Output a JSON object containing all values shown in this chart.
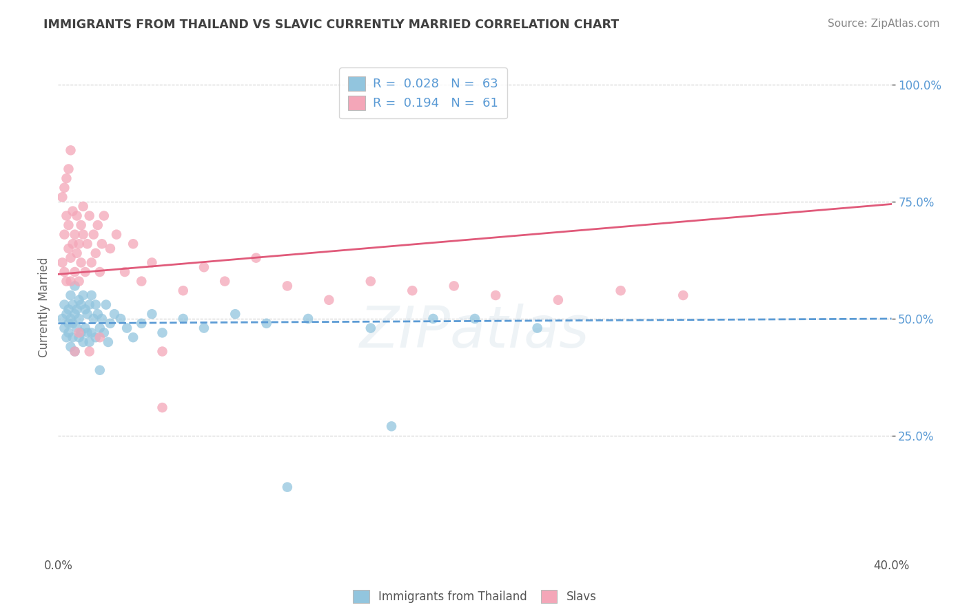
{
  "title": "IMMIGRANTS FROM THAILAND VS SLAVIC CURRENTLY MARRIED CORRELATION CHART",
  "source": "Source: ZipAtlas.com",
  "ylabel": "Currently Married",
  "legend_label1": "Immigrants from Thailand",
  "legend_label2": "Slavs",
  "R1": 0.028,
  "N1": 63,
  "R2": 0.194,
  "N2": 61,
  "color_blue": "#92c5de",
  "color_pink": "#f4a6b8",
  "color_blue_line": "#5b9bd5",
  "color_pink_line": "#e05a7a",
  "color_title": "#404040",
  "color_source": "#888888",
  "color_ytick": "#5b9bd5",
  "watermark": "ZIPatlas",
  "xlim": [
    0.0,
    0.4
  ],
  "ylim": [
    0.0,
    1.05
  ],
  "blue_line_y0": 0.49,
  "blue_line_y1": 0.5,
  "pink_line_y0": 0.595,
  "pink_line_y1": 0.745,
  "blue_scatter_x": [
    0.002,
    0.003,
    0.003,
    0.004,
    0.004,
    0.005,
    0.005,
    0.005,
    0.006,
    0.006,
    0.006,
    0.007,
    0.007,
    0.007,
    0.008,
    0.008,
    0.008,
    0.009,
    0.009,
    0.01,
    0.01,
    0.01,
    0.011,
    0.011,
    0.012,
    0.012,
    0.013,
    0.013,
    0.014,
    0.014,
    0.015,
    0.015,
    0.016,
    0.016,
    0.017,
    0.018,
    0.018,
    0.019,
    0.02,
    0.021,
    0.022,
    0.023,
    0.024,
    0.025,
    0.027,
    0.03,
    0.033,
    0.036,
    0.04,
    0.045,
    0.05,
    0.06,
    0.07,
    0.085,
    0.1,
    0.12,
    0.15,
    0.18,
    0.2,
    0.23,
    0.11,
    0.16,
    0.02
  ],
  "blue_scatter_y": [
    0.5,
    0.48,
    0.53,
    0.46,
    0.51,
    0.52,
    0.47,
    0.49,
    0.55,
    0.44,
    0.5,
    0.53,
    0.46,
    0.49,
    0.57,
    0.43,
    0.51,
    0.48,
    0.52,
    0.54,
    0.46,
    0.5,
    0.53,
    0.47,
    0.55,
    0.45,
    0.52,
    0.48,
    0.51,
    0.47,
    0.53,
    0.45,
    0.55,
    0.47,
    0.5,
    0.53,
    0.46,
    0.51,
    0.48,
    0.5,
    0.47,
    0.53,
    0.45,
    0.49,
    0.51,
    0.5,
    0.48,
    0.46,
    0.49,
    0.51,
    0.47,
    0.5,
    0.48,
    0.51,
    0.49,
    0.5,
    0.48,
    0.5,
    0.5,
    0.48,
    0.14,
    0.27,
    0.39
  ],
  "pink_scatter_x": [
    0.002,
    0.003,
    0.003,
    0.004,
    0.004,
    0.005,
    0.005,
    0.006,
    0.006,
    0.007,
    0.007,
    0.008,
    0.008,
    0.009,
    0.009,
    0.01,
    0.01,
    0.011,
    0.011,
    0.012,
    0.012,
    0.013,
    0.014,
    0.015,
    0.016,
    0.017,
    0.018,
    0.019,
    0.02,
    0.021,
    0.022,
    0.025,
    0.028,
    0.032,
    0.036,
    0.04,
    0.045,
    0.05,
    0.06,
    0.07,
    0.08,
    0.095,
    0.11,
    0.13,
    0.15,
    0.17,
    0.19,
    0.21,
    0.24,
    0.27,
    0.3,
    0.05,
    0.02,
    0.015,
    0.01,
    0.008,
    0.006,
    0.005,
    0.004,
    0.003,
    0.002
  ],
  "pink_scatter_y": [
    0.62,
    0.68,
    0.6,
    0.72,
    0.58,
    0.65,
    0.7,
    0.63,
    0.58,
    0.66,
    0.73,
    0.6,
    0.68,
    0.64,
    0.72,
    0.58,
    0.66,
    0.7,
    0.62,
    0.68,
    0.74,
    0.6,
    0.66,
    0.72,
    0.62,
    0.68,
    0.64,
    0.7,
    0.6,
    0.66,
    0.72,
    0.65,
    0.68,
    0.6,
    0.66,
    0.58,
    0.62,
    0.43,
    0.56,
    0.61,
    0.58,
    0.63,
    0.57,
    0.54,
    0.58,
    0.56,
    0.57,
    0.55,
    0.54,
    0.56,
    0.55,
    0.31,
    0.46,
    0.43,
    0.47,
    0.43,
    0.86,
    0.82,
    0.8,
    0.78,
    0.76
  ]
}
